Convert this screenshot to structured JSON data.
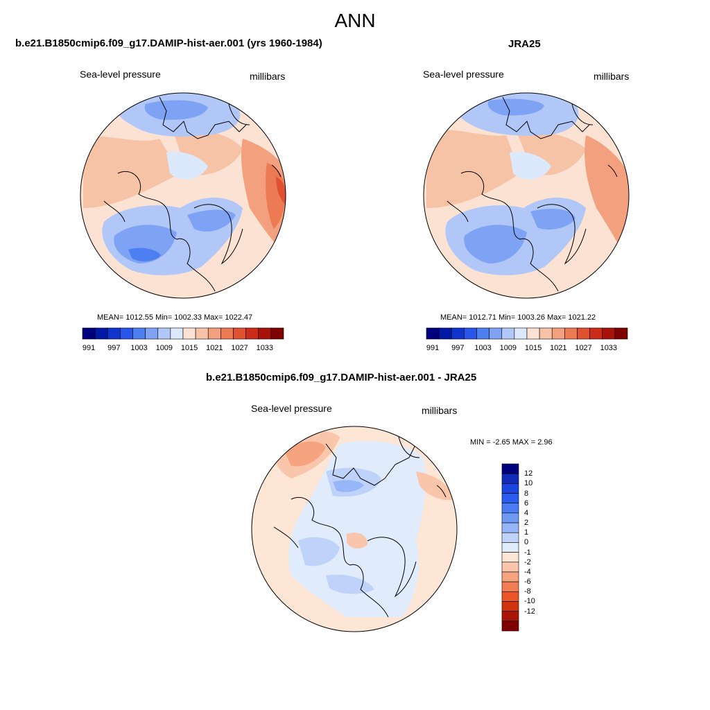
{
  "main_title": "ANN",
  "panels": [
    {
      "case_title": "b.e21.B1850cmip6.f09_g17.DAMIP-hist-aer.001 (yrs 1960-1984)",
      "variable": "Sea-level pressure",
      "units": "millibars",
      "stats": {
        "mean": 1012.55,
        "min": 1002.33,
        "max": 1022.47
      },
      "stats_text": "MEAN= 1012.55  Min= 1002.33  Max= 1022.47"
    },
    {
      "case_title": "JRA25",
      "variable": "Sea-level pressure",
      "units": "millibars",
      "stats": {
        "mean": 1012.71,
        "min": 1003.26,
        "max": 1021.22
      },
      "stats_text": "MEAN= 1012.71  Min= 1003.26  Max= 1021.22"
    },
    {
      "case_title": "b.e21.B1850cmip6.f09_g17.DAMIP-hist-aer.001 - JRA25",
      "variable": "Sea-level pressure",
      "units": "millibars",
      "stats": {
        "min": -2.65,
        "max": 2.96
      },
      "stats_text": "MIN =  -2.65 MAX =   2.96"
    }
  ],
  "colorbar_abs": {
    "colors": [
      "#00007f",
      "#001aa6",
      "#0f35cc",
      "#2a55ea",
      "#4e7ff0",
      "#7fa3f4",
      "#b0c7f7",
      "#dce8fb",
      "#fbe2d2",
      "#f6c3a6",
      "#f2a07d",
      "#ec7a53",
      "#e2512f",
      "#cc2c17",
      "#a81208",
      "#7f0000"
    ],
    "labels": [
      "991",
      "997",
      "1003",
      "1009",
      "1015",
      "1021",
      "1027",
      "1033"
    ]
  },
  "colorbar_diff": {
    "colors": [
      "#00007f",
      "#0f2bb8",
      "#1a45e0",
      "#2a5cf0",
      "#4a7cf3",
      "#6f99f5",
      "#97b6f7",
      "#bfd2f9",
      "#e0ebfb",
      "#fde6d6",
      "#f9c6ab",
      "#f5a47f",
      "#f17d52",
      "#ea5529",
      "#d0340f",
      "#a81605",
      "#7f0000"
    ],
    "labels": [
      "12",
      "10",
      "8",
      "6",
      "4",
      "2",
      "1",
      "0",
      "-1",
      "-2",
      "-4",
      "-6",
      "-8",
      "-10",
      "-12"
    ]
  }
}
